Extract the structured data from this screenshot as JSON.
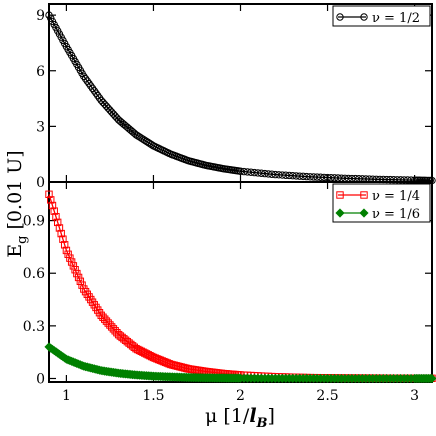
{
  "chart_data": {
    "type": "line",
    "x_axis": {
      "label_main": "μ [1/",
      "label_italic": "l",
      "label_sub": "B",
      "label_end": "]",
      "range": [
        0.9,
        3.1
      ],
      "ticks": [
        1,
        1.5,
        2,
        2.5,
        3
      ],
      "tick_labels": [
        "1",
        "1.5",
        "2",
        "2.5",
        "3"
      ]
    },
    "y_axis_label": {
      "main": "E",
      "sub": "g",
      "rest": " [0.01 U]"
    },
    "panels": [
      {
        "name": "top",
        "ylim": [
          0,
          9.6
        ],
        "yticks": [
          0,
          3,
          6,
          9
        ],
        "ytick_labels": [
          "0",
          "3",
          "6",
          "9"
        ],
        "legend_position": "top-right",
        "series": [
          {
            "name": "ν = 1/2",
            "color": "#000000",
            "marker": "circle",
            "x": [
              0.9,
              1.0,
              1.1,
              1.2,
              1.3,
              1.4,
              1.5,
              1.6,
              1.7,
              1.8,
              1.9,
              2.0,
              2.2,
              2.4,
              2.6,
              2.8,
              3.0,
              3.1
            ],
            "y": [
              9.0,
              7.3,
              5.7,
              4.4,
              3.35,
              2.55,
              1.95,
              1.5,
              1.15,
              0.9,
              0.72,
              0.58,
              0.4,
              0.28,
              0.2,
              0.14,
              0.1,
              0.08
            ]
          }
        ]
      },
      {
        "name": "bottom",
        "ylim": [
          -0.02,
          1.12
        ],
        "yticks": [
          0,
          0.3,
          0.6,
          0.9
        ],
        "ytick_labels": [
          "0",
          "0.3",
          "0.6",
          "0.9"
        ],
        "legend_position": "top-right",
        "series": [
          {
            "name": "ν = 1/4",
            "color": "#ff0000",
            "marker": "square",
            "x": [
              0.9,
              1.0,
              1.1,
              1.2,
              1.3,
              1.4,
              1.5,
              1.6,
              1.7,
              1.8,
              1.9,
              2.0,
              2.2,
              2.4,
              2.6,
              2.8,
              3.0,
              3.1
            ],
            "y": [
              1.05,
              0.73,
              0.51,
              0.36,
              0.25,
              0.17,
              0.12,
              0.08,
              0.055,
              0.04,
              0.028,
              0.02,
              0.01,
              0.005,
              0.003,
              0.002,
              0.001,
              0.001
            ]
          },
          {
            "name": "ν = 1/6",
            "color": "#008000",
            "marker": "diamond",
            "x": [
              0.9,
              1.0,
              1.1,
              1.2,
              1.3,
              1.4,
              1.5,
              1.6,
              1.7,
              1.8,
              1.9,
              2.0,
              2.2,
              2.4,
              2.6,
              2.8,
              3.0,
              3.1
            ],
            "y": [
              0.18,
              0.11,
              0.07,
              0.045,
              0.03,
              0.02,
              0.013,
              0.009,
              0.006,
              0.004,
              0.003,
              0.002,
              0.001,
              0.001,
              0.0,
              0.0,
              0.0,
              0.0
            ]
          }
        ]
      }
    ]
  }
}
